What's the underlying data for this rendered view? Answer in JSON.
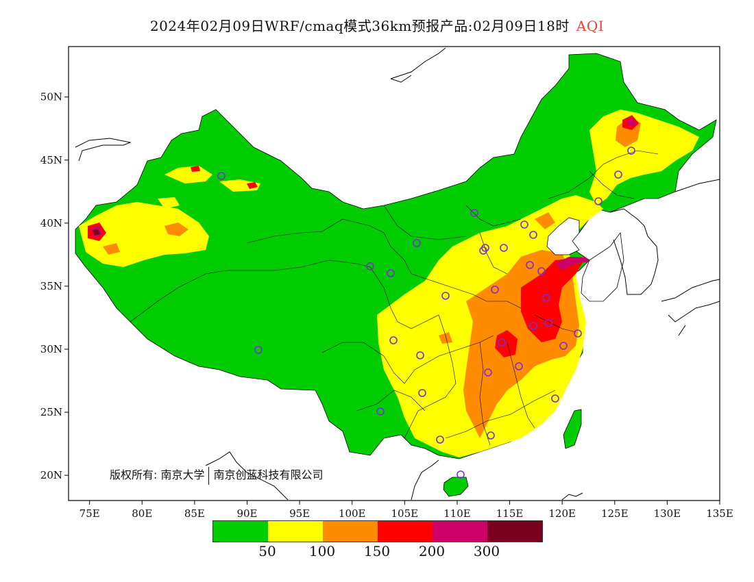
{
  "title": {
    "main": "2024年02月09日WRF/cmaq模式36km预报产品:02月09日18时",
    "variable": "AQI"
  },
  "map": {
    "lat_ticks": [
      "50N",
      "45N",
      "40N",
      "35N",
      "30N",
      "25N",
      "20N"
    ],
    "lon_ticks": [
      "75E",
      "80E",
      "85E",
      "90E",
      "95E",
      "100E",
      "105E",
      "110E",
      "115E",
      "120E",
      "125E",
      "130E",
      "135E"
    ],
    "extent": {
      "lon": [
        73,
        135
      ],
      "lat": [
        18,
        54
      ]
    },
    "copyright_left": "版权所有: 南京大学",
    "copyright_right": "南京创蓝科技有限公司"
  },
  "legend": {
    "colors": [
      "#00cc00",
      "#ffff00",
      "#ff8c00",
      "#ff0000",
      "#cc0066",
      "#7a0020"
    ],
    "labels": [
      "50",
      "100",
      "150",
      "200",
      "300"
    ]
  },
  "stations_color": "#7b2fd6"
}
